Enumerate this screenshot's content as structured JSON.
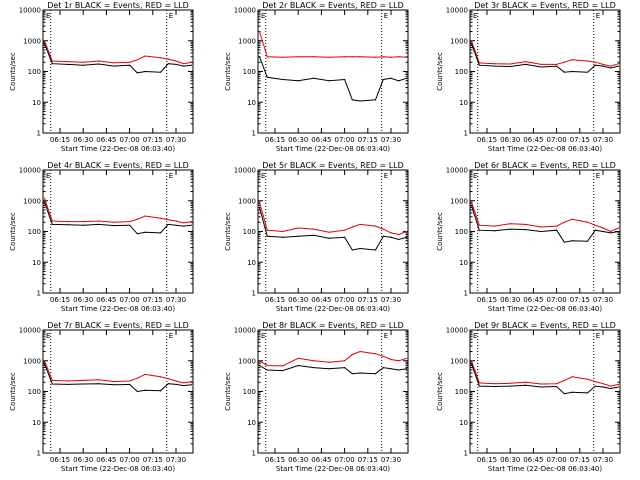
{
  "colors": {
    "events": "#000000",
    "lld": "#e00000",
    "axis": "#000000",
    "background": "#ffffff"
  },
  "shared_axes": {
    "xlabel": "Start Time (22-Dec-08 06:03:40)",
    "ylabel": "Counts/sec",
    "y_ticks": [
      1,
      10,
      100,
      1000,
      10000
    ],
    "y_tick_labels": [
      "1",
      "10",
      "100",
      "1000",
      "10000"
    ],
    "x_ticks": [
      "06:15",
      "06:30",
      "06:45",
      "07:00",
      "07:15",
      "07:30"
    ],
    "x_tick_labels": [
      "06:15",
      "06:30",
      "06:45",
      "07:00",
      "07:15",
      "07:30"
    ],
    "corner_mark": "E"
  },
  "chart_data": [
    {
      "type": "line",
      "title": "Det 1r BLACK = Events, RED = LLD",
      "x": [
        "06:05",
        "06:10",
        "06:20",
        "06:30",
        "06:40",
        "06:50",
        "07:00",
        "07:05",
        "07:10",
        "07:20",
        "07:25",
        "07:30",
        "07:35",
        "07:40"
      ],
      "xlabel": "Start Time (22-Dec-08 06:03:40)",
      "ylabel": "Counts/sec",
      "ylim": [
        1,
        10000
      ],
      "yscale": "log",
      "xlim": [
        "06:04",
        "07:41"
      ],
      "vlines": [
        "06:09",
        "07:24"
      ],
      "series": [
        {
          "color": "#e00000",
          "values": [
            1000,
            220,
            210,
            200,
            220,
            190,
            200,
            240,
            320,
            280,
            250,
            220,
            180,
            200
          ]
        },
        {
          "color": "#000000",
          "values": [
            800,
            180,
            170,
            160,
            175,
            150,
            160,
            90,
            100,
            95,
            180,
            170,
            150,
            160
          ]
        }
      ]
    },
    {
      "type": "line",
      "title": "Det 2r BLACK = Events, RED = LLD",
      "x": [
        "06:05",
        "06:10",
        "06:20",
        "06:30",
        "06:40",
        "06:50",
        "07:00",
        "07:05",
        "07:10",
        "07:20",
        "07:25",
        "07:30",
        "07:35",
        "07:40"
      ],
      "xlabel": "Start Time (22-Dec-08 06:03:40)",
      "ylabel": "Counts/sec",
      "ylim": [
        1,
        10000
      ],
      "yscale": "log",
      "xlim": [
        "06:04",
        "07:41"
      ],
      "vlines": [
        "06:09",
        "07:24"
      ],
      "series": [
        {
          "color": "#e00000",
          "values": [
            2000,
            300,
            290,
            300,
            300,
            290,
            300,
            300,
            300,
            290,
            300,
            290,
            300,
            290
          ]
        },
        {
          "color": "#000000",
          "values": [
            300,
            65,
            55,
            50,
            60,
            50,
            55,
            12,
            11,
            12,
            55,
            60,
            50,
            60
          ]
        }
      ]
    },
    {
      "type": "line",
      "title": "Det 3r BLACK = Events, RED = LLD",
      "x": [
        "06:05",
        "06:10",
        "06:20",
        "06:30",
        "06:40",
        "06:50",
        "07:00",
        "07:05",
        "07:10",
        "07:20",
        "07:25",
        "07:30",
        "07:35",
        "07:40"
      ],
      "xlabel": "Start Time (22-Dec-08 06:03:40)",
      "ylabel": "Counts/sec",
      "ylim": [
        1,
        10000
      ],
      "yscale": "log",
      "xlim": [
        "06:04",
        "07:41"
      ],
      "vlines": [
        "06:09",
        "07:24"
      ],
      "series": [
        {
          "color": "#e00000",
          "values": [
            1000,
            190,
            180,
            175,
            210,
            170,
            170,
            200,
            240,
            220,
            200,
            170,
            150,
            180
          ]
        },
        {
          "color": "#000000",
          "values": [
            800,
            160,
            150,
            145,
            170,
            140,
            150,
            95,
            100,
            95,
            160,
            150,
            130,
            150
          ]
        }
      ]
    },
    {
      "type": "line",
      "title": "Det 4r BLACK = Events, RED = LLD",
      "x": [
        "06:05",
        "06:10",
        "06:20",
        "06:30",
        "06:40",
        "06:50",
        "07:00",
        "07:05",
        "07:10",
        "07:20",
        "07:25",
        "07:30",
        "07:35",
        "07:40"
      ],
      "xlabel": "Start Time (22-Dec-08 06:03:40)",
      "ylabel": "Counts/sec",
      "ylim": [
        1,
        10000
      ],
      "yscale": "log",
      "xlim": [
        "06:04",
        "07:41"
      ],
      "vlines": [
        "06:09",
        "07:24"
      ],
      "series": [
        {
          "color": "#e00000",
          "values": [
            1200,
            220,
            210,
            210,
            220,
            200,
            210,
            250,
            320,
            270,
            240,
            220,
            190,
            210
          ]
        },
        {
          "color": "#000000",
          "values": [
            900,
            170,
            165,
            160,
            170,
            155,
            160,
            85,
            95,
            90,
            170,
            160,
            150,
            160
          ]
        }
      ]
    },
    {
      "type": "line",
      "title": "Det 5r BLACK = Events, RED = LLD",
      "x": [
        "06:05",
        "06:10",
        "06:20",
        "06:30",
        "06:40",
        "06:50",
        "07:00",
        "07:05",
        "07:10",
        "07:20",
        "07:25",
        "07:30",
        "07:35",
        "07:40"
      ],
      "xlabel": "Start Time (22-Dec-08 06:03:40)",
      "ylabel": "Counts/sec",
      "ylim": [
        1,
        10000
      ],
      "yscale": "log",
      "xlim": [
        "06:04",
        "07:41"
      ],
      "vlines": [
        "06:09",
        "07:24"
      ],
      "series": [
        {
          "color": "#e00000",
          "values": [
            900,
            110,
            100,
            130,
            120,
            95,
            110,
            140,
            170,
            150,
            120,
            90,
            80,
            100
          ]
        },
        {
          "color": "#000000",
          "values": [
            600,
            70,
            65,
            70,
            75,
            60,
            65,
            25,
            28,
            25,
            70,
            65,
            55,
            65
          ]
        }
      ]
    },
    {
      "type": "line",
      "title": "Det 6r BLACK = Events, RED = LLD",
      "x": [
        "06:05",
        "06:10",
        "06:20",
        "06:30",
        "06:40",
        "06:50",
        "07:00",
        "07:05",
        "07:10",
        "07:20",
        "07:25",
        "07:30",
        "07:35",
        "07:40"
      ],
      "xlabel": "Start Time (22-Dec-08 06:03:40)",
      "ylabel": "Counts/sec",
      "ylim": [
        1,
        10000
      ],
      "yscale": "log",
      "xlim": [
        "06:04",
        "07:41"
      ],
      "vlines": [
        "06:09",
        "07:24"
      ],
      "series": [
        {
          "color": "#e00000",
          "values": [
            900,
            160,
            150,
            180,
            170,
            140,
            150,
            200,
            250,
            200,
            160,
            130,
            100,
            130
          ]
        },
        {
          "color": "#000000",
          "values": [
            700,
            110,
            105,
            120,
            115,
            100,
            110,
            45,
            50,
            48,
            110,
            100,
            90,
            100
          ]
        }
      ]
    },
    {
      "type": "line",
      "title": "Det 7r BLACK = Events, RED = LLD",
      "x": [
        "06:05",
        "06:10",
        "06:20",
        "06:30",
        "06:40",
        "06:50",
        "07:00",
        "07:05",
        "07:10",
        "07:20",
        "07:25",
        "07:30",
        "07:35",
        "07:40"
      ],
      "xlabel": "Start Time (22-Dec-08 06:03:40)",
      "ylabel": "Counts/sec",
      "ylim": [
        1,
        10000
      ],
      "yscale": "log",
      "xlim": [
        "06:04",
        "07:41"
      ],
      "vlines": [
        "06:09",
        "07:24"
      ],
      "series": [
        {
          "color": "#e00000",
          "values": [
            1000,
            230,
            220,
            230,
            240,
            210,
            220,
            270,
            360,
            300,
            260,
            220,
            190,
            210
          ]
        },
        {
          "color": "#000000",
          "values": [
            800,
            175,
            170,
            175,
            180,
            165,
            170,
            100,
            110,
            105,
            180,
            170,
            155,
            165
          ]
        }
      ]
    },
    {
      "type": "line",
      "title": "Det 8r BLACK = Events, RED = LLD",
      "x": [
        "06:05",
        "06:10",
        "06:20",
        "06:30",
        "06:40",
        "06:50",
        "07:00",
        "07:05",
        "07:10",
        "07:20",
        "07:25",
        "07:30",
        "07:35",
        "07:40"
      ],
      "xlabel": "Start Time (22-Dec-08 06:03:40)",
      "ylabel": "Counts/sec",
      "ylim": [
        1,
        10000
      ],
      "yscale": "log",
      "xlim": [
        "06:04",
        "07:41"
      ],
      "vlines": [
        "06:09",
        "07:24"
      ],
      "series": [
        {
          "color": "#e00000",
          "values": [
            1000,
            700,
            680,
            1200,
            1000,
            900,
            1000,
            1600,
            2000,
            1700,
            1400,
            1100,
            1000,
            1200
          ]
        },
        {
          "color": "#000000",
          "values": [
            700,
            500,
            480,
            700,
            600,
            550,
            600,
            380,
            400,
            380,
            600,
            550,
            500,
            550
          ]
        }
      ]
    },
    {
      "type": "line",
      "title": "Det 9r BLACK = Events, RED = LLD",
      "x": [
        "06:05",
        "06:10",
        "06:20",
        "06:30",
        "06:40",
        "06:50",
        "07:00",
        "07:05",
        "07:10",
        "07:20",
        "07:25",
        "07:30",
        "07:35",
        "07:40"
      ],
      "xlabel": "Start Time (22-Dec-08 06:03:40)",
      "ylabel": "Counts/sec",
      "ylim": [
        1,
        10000
      ],
      "yscale": "log",
      "xlim": [
        "06:04",
        "07:41"
      ],
      "vlines": [
        "06:09",
        "07:24"
      ],
      "series": [
        {
          "color": "#e00000",
          "values": [
            1000,
            190,
            180,
            185,
            200,
            175,
            180,
            230,
            300,
            250,
            210,
            180,
            150,
            170
          ]
        },
        {
          "color": "#000000",
          "values": [
            800,
            150,
            145,
            150,
            160,
            140,
            145,
            85,
            95,
            90,
            150,
            140,
            125,
            140
          ]
        }
      ]
    }
  ]
}
